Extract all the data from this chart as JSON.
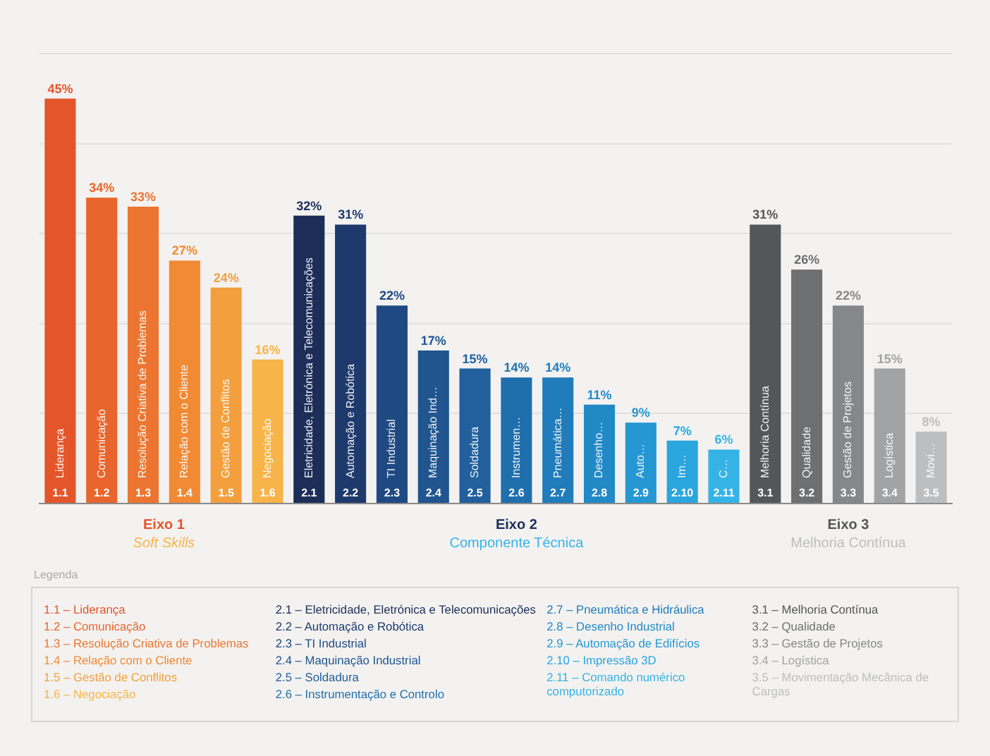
{
  "chart_data": {
    "type": "bar",
    "categories": [
      "1.1",
      "1.2",
      "1.3",
      "1.4",
      "1.5",
      "1.6",
      "2.1",
      "2.2",
      "2.3",
      "2.4",
      "2.5",
      "2.6",
      "2.7",
      "2.8",
      "2.9",
      "2.10",
      "2.11",
      "3.1",
      "3.2",
      "3.3",
      "3.4",
      "3.5"
    ],
    "values": [
      45,
      34,
      33,
      27,
      24,
      16,
      32,
      31,
      22,
      17,
      15,
      14,
      14,
      11,
      9,
      7,
      6,
      31,
      26,
      22,
      15,
      8
    ],
    "colors": [
      "#e4552a",
      "#e8652d",
      "#ec7631",
      "#f08a35",
      "#f49f3e",
      "#f7b449",
      "#1c2d58",
      "#1e3a6d",
      "#1f4982",
      "#20558f",
      "#21609d",
      "#206fad",
      "#207cbb",
      "#2289c7",
      "#2597d3",
      "#2aa5dd",
      "#35b3e6",
      "#545657",
      "#6d6f70",
      "#868788",
      "#a2a3a4",
      "#bdbebf"
    ],
    "value_labels": [
      "45%",
      "34%",
      "33%",
      "27%",
      "24%",
      "16%",
      "32%",
      "31%",
      "22%",
      "17%",
      "15%",
      "14%",
      "14%",
      "11%",
      "9%",
      "7%",
      "6%",
      "31%",
      "26%",
      "22%",
      "15%",
      "8%"
    ],
    "grid": "y",
    "tick_labels": "x",
    "legend": false,
    "annotations": [
      {
        "text": "Liderança",
        "x": "1.1",
        "y": 0
      },
      {
        "text": "Comunicação",
        "x": "1.2",
        "y": 0
      },
      {
        "text": "Resolução Criativa de Problemas",
        "x": "1.3",
        "y": 0
      },
      {
        "text": "Relação com o Cliente",
        "x": "1.4",
        "y": 0
      },
      {
        "text": "Gestão de Conflitos",
        "x": "1.5",
        "y": 0
      },
      {
        "text": "Negociação",
        "x": "1.6",
        "y": 0
      },
      {
        "text": "Eletricidade, Eletrónica e Telecomunicações",
        "x": "2.1",
        "y": 0
      },
      {
        "text": "Automação e Robótica",
        "x": "2.2",
        "y": 0
      },
      {
        "text": "TI Industrial",
        "x": "2.3",
        "y": 0
      },
      {
        "text": "Maquinação Ind…",
        "x": "2.4",
        "y": 0
      },
      {
        "text": "Soldadura",
        "x": "2.5",
        "y": 0
      },
      {
        "text": "Instrumen…",
        "x": "2.6",
        "y": 0
      },
      {
        "text": "Pneumática…",
        "x": "2.7",
        "y": 0
      },
      {
        "text": "Desenho…",
        "x": "2.8",
        "y": 0
      },
      {
        "text": "Auto…",
        "x": "2.9",
        "y": 0
      },
      {
        "text": "Im…",
        "x": "2.10",
        "y": 0
      },
      {
        "text": "C…",
        "x": "2.11",
        "y": 0
      },
      {
        "text": "Melhoria Contínua",
        "x": "3.1",
        "y": 0
      },
      {
        "text": "Qualidade",
        "x": "3.2",
        "y": 0
      },
      {
        "text": "Gestão de Projetos",
        "x": "3.3",
        "y": 0
      },
      {
        "text": "Logística",
        "x": "3.4",
        "y": 0
      },
      {
        "text": "Movi…",
        "x": "3.5",
        "y": 0
      },
      "Eixo 1",
      "Soft Skills",
      "Eixo 2",
      "Componente Técnica",
      "Eixo 3",
      "Melhoria Contínua",
      "Legenda",
      "1.1 – Liderança",
      "1.2 – Comunicação",
      "1.3 – Resolução Criativa de Problemas",
      "1.4 – Relação com o Cliente",
      "1.5 – Gestão de Conflitos",
      "1.6 – Negociação",
      "2.1 – Eletricidade, Eletrónica e Telecomunicações",
      "2.2 – Automação e Robótica",
      "2.3 – TI Industrial",
      "2.4 – Maquinação Industrial",
      "2.5 – Soldadura",
      "2.6 – Instrumentação e Controlo",
      "2.7 – Pneumática e Hidráulica",
      "2.8 – Desenho Industrial",
      "2.9 – Automação de Edifícios",
      "2.10 – Impressão 3D",
      "2.11 – Comando numérico computorizado",
      "3.1 – Melhoria Contínua",
      "3.2 – Qualidade",
      "3.3 – Gestão de Projetos",
      "3.4 – Logística",
      "3.5 – Movimentação Mecânica de Cargas"
    ]
  }
}
